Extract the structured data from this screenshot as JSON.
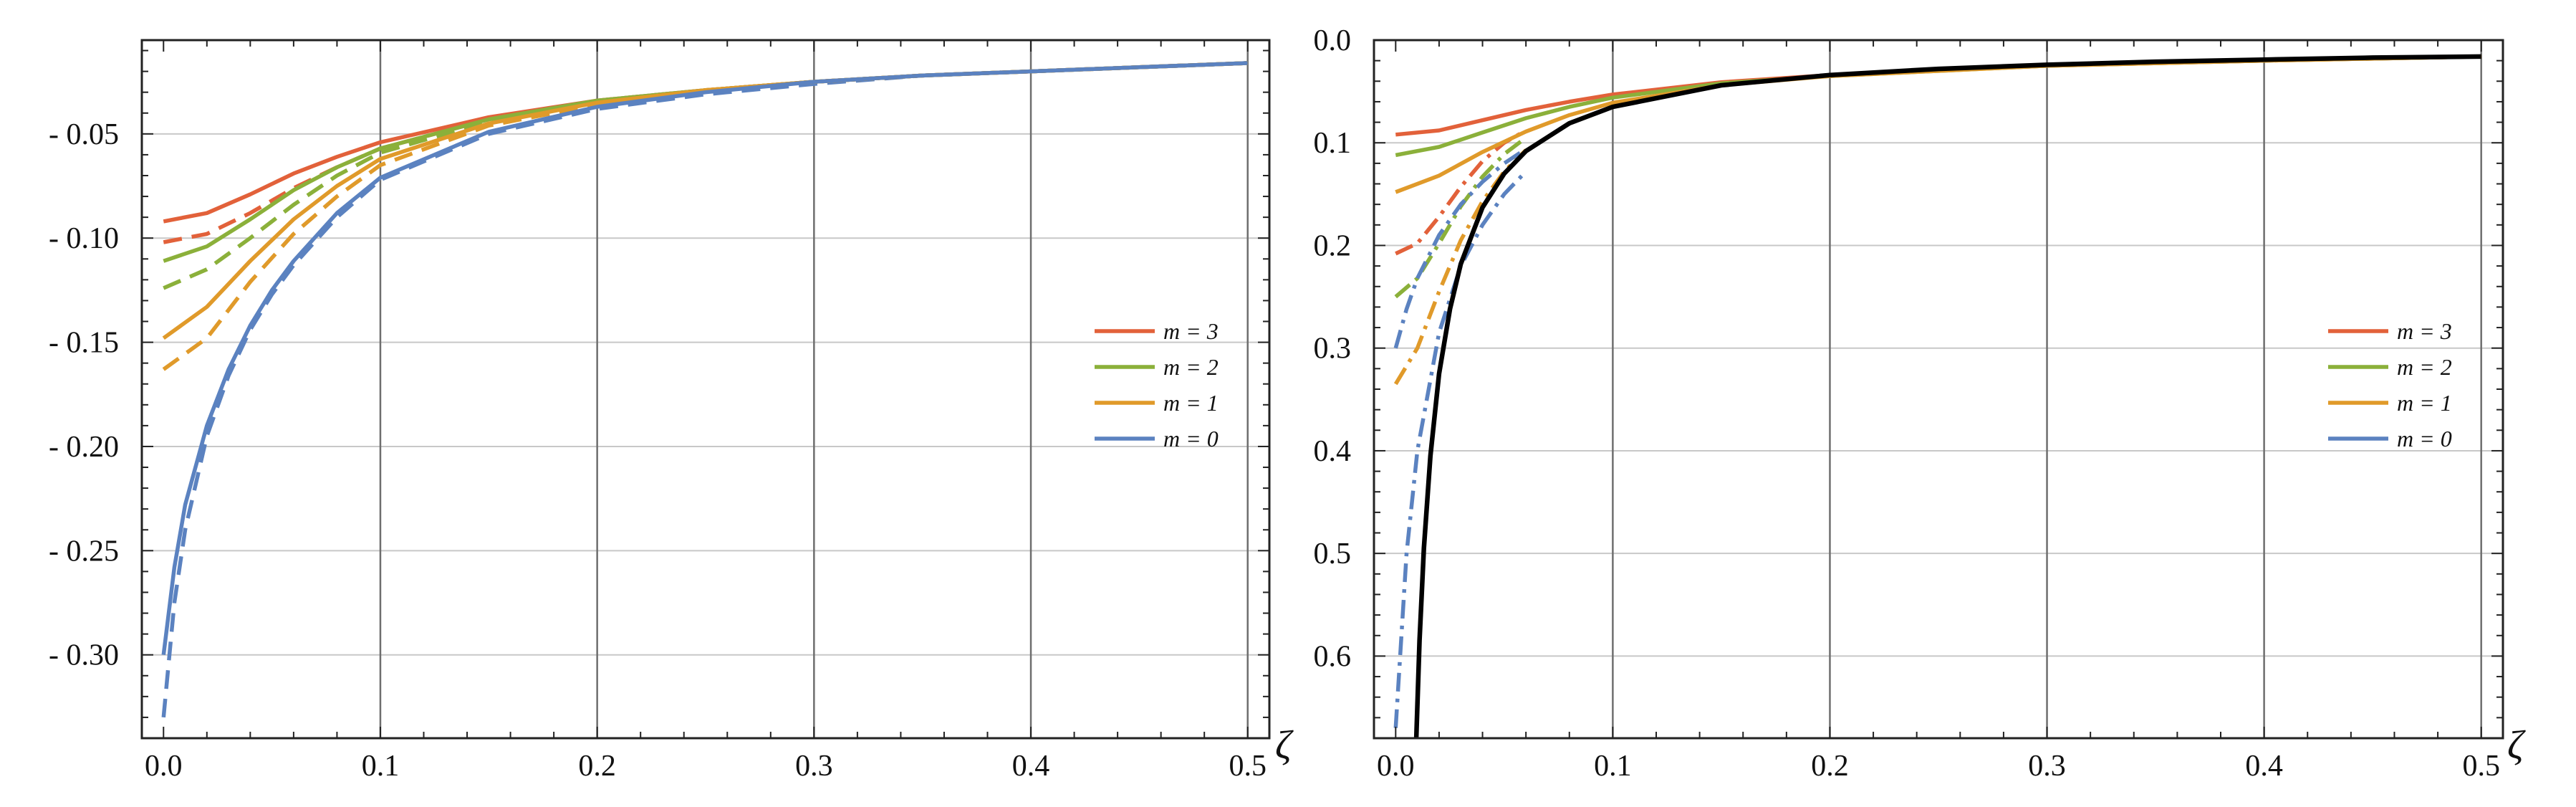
{
  "chart_data": [
    {
      "type": "line",
      "title": "",
      "xlabel": "ζ",
      "ylabel": "",
      "xlim": [
        -0.01,
        0.51
      ],
      "ylim": [
        -0.34,
        -0.005
      ],
      "xticks": [
        0.0,
        0.1,
        0.2,
        0.3,
        0.4,
        0.5
      ],
      "xtick_labels": [
        "0.0",
        "0.1",
        "0.2",
        "0.3",
        "0.4",
        "0.5"
      ],
      "yticks": [
        -0.05,
        -0.1,
        -0.15,
        -0.2,
        -0.25,
        -0.3
      ],
      "ytick_labels": [
        "- 0.05",
        "- 0.10",
        "- 0.15",
        "- 0.20",
        "- 0.25",
        "- 0.30"
      ],
      "grid": true,
      "legend_position": "right",
      "legend": [
        {
          "label": "m = 3",
          "color": "#e2613a"
        },
        {
          "label": "m = 2",
          "color": "#8bb03a"
        },
        {
          "label": "m = 1",
          "color": "#e09a2a"
        },
        {
          "label": "m = 0",
          "color": "#5b82c0"
        }
      ],
      "series": [
        {
          "m": 3,
          "style": "solid",
          "color": "#e2613a",
          "x": [
            0.0,
            0.02,
            0.04,
            0.06,
            0.08,
            0.1,
            0.15,
            0.2,
            0.25,
            0.3,
            0.35,
            0.4,
            0.45,
            0.5
          ],
          "y": [
            -0.092,
            -0.088,
            -0.079,
            -0.069,
            -0.061,
            -0.054,
            -0.042,
            -0.034,
            -0.029,
            -0.025,
            -0.022,
            -0.02,
            -0.018,
            -0.016
          ]
        },
        {
          "m": 3,
          "style": "dashed",
          "color": "#e2613a",
          "x": [
            0.0,
            0.02,
            0.04,
            0.06,
            0.08,
            0.1,
            0.15,
            0.2,
            0.25,
            0.3,
            0.35,
            0.4,
            0.45,
            0.5
          ],
          "y": [
            -0.102,
            -0.098,
            -0.088,
            -0.076,
            -0.066,
            -0.057,
            -0.043,
            -0.034,
            -0.029,
            -0.025,
            -0.022,
            -0.02,
            -0.018,
            -0.016
          ]
        },
        {
          "m": 2,
          "style": "solid",
          "color": "#8bb03a",
          "x": [
            0.0,
            0.02,
            0.04,
            0.06,
            0.08,
            0.1,
            0.15,
            0.2,
            0.25,
            0.3,
            0.35,
            0.4,
            0.45,
            0.5
          ],
          "y": [
            -0.111,
            -0.104,
            -0.091,
            -0.077,
            -0.066,
            -0.057,
            -0.043,
            -0.034,
            -0.029,
            -0.025,
            -0.022,
            -0.02,
            -0.018,
            -0.016
          ]
        },
        {
          "m": 2,
          "style": "dashed",
          "color": "#8bb03a",
          "x": [
            0.0,
            0.02,
            0.04,
            0.06,
            0.08,
            0.1,
            0.15,
            0.2,
            0.25,
            0.3,
            0.35,
            0.4,
            0.45,
            0.5
          ],
          "y": [
            -0.124,
            -0.115,
            -0.1,
            -0.084,
            -0.07,
            -0.059,
            -0.044,
            -0.035,
            -0.029,
            -0.025,
            -0.022,
            -0.02,
            -0.018,
            -0.016
          ]
        },
        {
          "m": 1,
          "style": "solid",
          "color": "#e09a2a",
          "x": [
            0.0,
            0.02,
            0.04,
            0.06,
            0.08,
            0.1,
            0.15,
            0.2,
            0.25,
            0.3,
            0.35,
            0.4,
            0.45,
            0.5
          ],
          "y": [
            -0.148,
            -0.133,
            -0.111,
            -0.091,
            -0.075,
            -0.062,
            -0.045,
            -0.035,
            -0.029,
            -0.025,
            -0.022,
            -0.02,
            -0.018,
            -0.016
          ]
        },
        {
          "m": 1,
          "style": "dashed",
          "color": "#e09a2a",
          "x": [
            0.0,
            0.02,
            0.04,
            0.06,
            0.08,
            0.1,
            0.15,
            0.2,
            0.25,
            0.3,
            0.35,
            0.4,
            0.45,
            0.5
          ],
          "y": [
            -0.163,
            -0.148,
            -0.121,
            -0.098,
            -0.08,
            -0.065,
            -0.046,
            -0.036,
            -0.029,
            -0.025,
            -0.022,
            -0.02,
            -0.018,
            -0.016
          ]
        },
        {
          "m": 0,
          "style": "solid",
          "color": "#5b82c0",
          "x": [
            0.0,
            0.005,
            0.01,
            0.02,
            0.03,
            0.04,
            0.05,
            0.06,
            0.08,
            0.1,
            0.15,
            0.2,
            0.25,
            0.3,
            0.35,
            0.4,
            0.45,
            0.5
          ],
          "y": [
            -0.3,
            -0.258,
            -0.228,
            -0.19,
            -0.163,
            -0.142,
            -0.125,
            -0.111,
            -0.088,
            -0.071,
            -0.049,
            -0.037,
            -0.03,
            -0.025,
            -0.022,
            -0.02,
            -0.018,
            -0.016
          ]
        },
        {
          "m": 0,
          "style": "dashed",
          "color": "#5b82c0",
          "x": [
            0.0,
            0.005,
            0.01,
            0.02,
            0.03,
            0.04,
            0.05,
            0.06,
            0.08,
            0.1,
            0.15,
            0.2,
            0.25,
            0.3,
            0.35,
            0.4,
            0.45,
            0.5
          ],
          "y": [
            -0.33,
            -0.275,
            -0.24,
            -0.195,
            -0.166,
            -0.144,
            -0.127,
            -0.113,
            -0.09,
            -0.072,
            -0.05,
            -0.038,
            -0.031,
            -0.026,
            -0.022,
            -0.02,
            -0.018,
            -0.016
          ]
        }
      ]
    },
    {
      "type": "line",
      "title": "",
      "xlabel": "ζ",
      "ylabel": "",
      "xlim": [
        -0.01,
        0.51
      ],
      "ylim": [
        -0.68,
        0.0
      ],
      "xticks": [
        0.0,
        0.1,
        0.2,
        0.3,
        0.4,
        0.5
      ],
      "xtick_labels": [
        "0.0",
        "0.1",
        "0.2",
        "0.3",
        "0.4",
        "0.5"
      ],
      "yticks": [
        0.0,
        -0.1,
        -0.2,
        -0.3,
        -0.4,
        -0.5,
        -0.6
      ],
      "ytick_labels": [
        "0.0",
        "0.1",
        "0.2",
        "0.3",
        "0.4",
        "0.5",
        "0.6"
      ],
      "grid": true,
      "legend_position": "right",
      "legend": [
        {
          "label": "m = 3",
          "color": "#e2613a"
        },
        {
          "label": "m = 2",
          "color": "#8bb03a"
        },
        {
          "label": "m = 1",
          "color": "#e09a2a"
        },
        {
          "label": "m = 0",
          "color": "#5b82c0"
        }
      ],
      "series": [
        {
          "m": 3,
          "style": "solid",
          "color": "#e2613a",
          "x": [
            0.0,
            0.02,
            0.04,
            0.06,
            0.08,
            0.1,
            0.15,
            0.2,
            0.3,
            0.4,
            0.5
          ],
          "y": [
            -0.092,
            -0.088,
            -0.078,
            -0.068,
            -0.06,
            -0.053,
            -0.041,
            -0.034,
            -0.025,
            -0.02,
            -0.016
          ]
        },
        {
          "m": 3,
          "style": "dashdot",
          "color": "#e2613a",
          "x": [
            0.0,
            0.01,
            0.02,
            0.03,
            0.04,
            0.05,
            0.06
          ],
          "y": [
            -0.208,
            -0.198,
            -0.172,
            -0.143,
            -0.118,
            -0.1,
            -0.088
          ]
        },
        {
          "m": 2,
          "style": "solid",
          "color": "#8bb03a",
          "x": [
            0.0,
            0.02,
            0.04,
            0.06,
            0.08,
            0.1,
            0.15,
            0.2,
            0.3,
            0.4,
            0.5
          ],
          "y": [
            -0.112,
            -0.104,
            -0.09,
            -0.076,
            -0.065,
            -0.056,
            -0.042,
            -0.035,
            -0.025,
            -0.02,
            -0.016
          ]
        },
        {
          "m": 2,
          "style": "dashdot",
          "color": "#8bb03a",
          "x": [
            0.0,
            0.01,
            0.02,
            0.03,
            0.04,
            0.05,
            0.06
          ],
          "y": [
            -0.25,
            -0.232,
            -0.198,
            -0.162,
            -0.133,
            -0.111,
            -0.095
          ]
        },
        {
          "m": 1,
          "style": "solid",
          "color": "#e09a2a",
          "x": [
            0.0,
            0.02,
            0.04,
            0.06,
            0.08,
            0.1,
            0.15,
            0.2,
            0.3,
            0.4,
            0.5
          ],
          "y": [
            -0.148,
            -0.132,
            -0.109,
            -0.089,
            -0.073,
            -0.061,
            -0.044,
            -0.035,
            -0.025,
            -0.02,
            -0.016
          ]
        },
        {
          "m": 1,
          "style": "dashdot",
          "color": "#e09a2a",
          "x": [
            0.0,
            0.01,
            0.02,
            0.03,
            0.04,
            0.05,
            0.06
          ],
          "y": [
            -0.335,
            -0.3,
            -0.245,
            -0.195,
            -0.157,
            -0.128,
            -0.107
          ]
        },
        {
          "m": 0,
          "style": "dashdot",
          "color": "#5b82c0",
          "x": [
            0.0,
            0.005,
            0.01,
            0.02,
            0.03,
            0.04,
            0.05,
            0.06
          ],
          "y": [
            -0.3,
            -0.262,
            -0.232,
            -0.19,
            -0.16,
            -0.138,
            -0.12,
            -0.106
          ]
        },
        {
          "m": 0,
          "style": "dashdot",
          "color": "#5b82c0",
          "x": [
            0.0,
            0.005,
            0.01,
            0.02,
            0.03,
            0.04,
            0.05,
            0.06
          ],
          "y": [
            -0.67,
            -0.5,
            -0.4,
            -0.285,
            -0.22,
            -0.18,
            -0.15,
            -0.128
          ]
        },
        {
          "m": null,
          "style": "solid",
          "color": "#000000",
          "x": [
            0.0095,
            0.011,
            0.013,
            0.016,
            0.02,
            0.025,
            0.03,
            0.04,
            0.05,
            0.06,
            0.08,
            0.1,
            0.15,
            0.2,
            0.25,
            0.3,
            0.35,
            0.4,
            0.45,
            0.5
          ],
          "y": [
            -0.68,
            -0.585,
            -0.495,
            -0.405,
            -0.325,
            -0.262,
            -0.218,
            -0.163,
            -0.13,
            -0.108,
            -0.081,
            -0.065,
            -0.044,
            -0.034,
            -0.028,
            -0.024,
            -0.021,
            -0.019,
            -0.017,
            -0.016
          ]
        }
      ]
    }
  ]
}
